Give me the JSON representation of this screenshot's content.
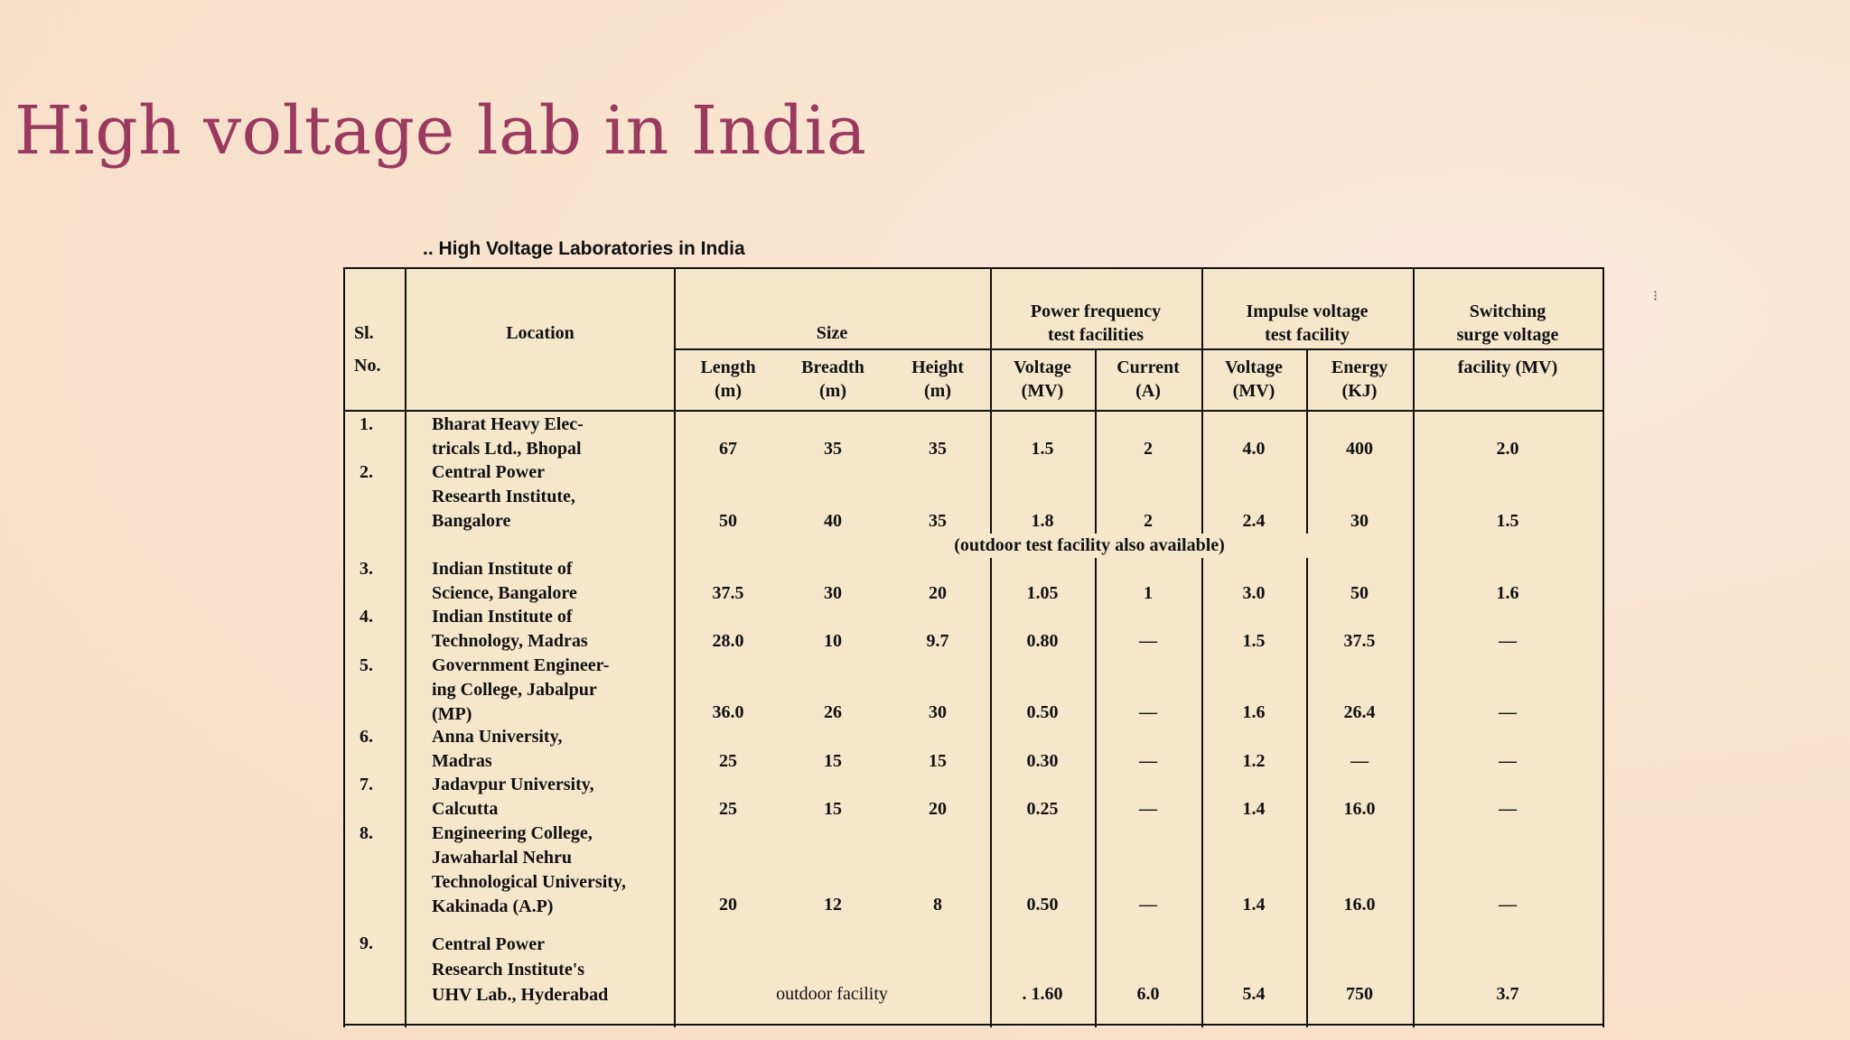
{
  "slide": {
    "title": "High voltage lab in India"
  },
  "table": {
    "caption": ".. High Voltage Laboratories in India",
    "headers": {
      "sl_no": [
        "Sl.",
        "No."
      ],
      "location": "Location",
      "size": "Size",
      "length": [
        "Length",
        "(m)"
      ],
      "breadth": [
        "Breadth",
        "(m)"
      ],
      "height": [
        "Height",
        "(m)"
      ],
      "power_frequency": [
        "Power frequency",
        "test facilities"
      ],
      "pf_voltage": [
        "Voltage",
        "(MV)"
      ],
      "pf_current": [
        "Current",
        "(A)"
      ],
      "impulse": [
        "Impulse voltage",
        "test facility"
      ],
      "imp_voltage": [
        "Voltage",
        "(MV)"
      ],
      "imp_energy": [
        "Energy",
        "(KJ)"
      ],
      "switching": [
        "Switching",
        "surge voltage",
        "facility (MV)"
      ]
    },
    "rows": [
      {
        "sl": "1.",
        "location": [
          "Bharat Heavy Elec-",
          "tricals Ltd., Bhopal"
        ],
        "length": "67",
        "breadth": "35",
        "height": "35",
        "pf_voltage": "1.5",
        "pf_current": "2",
        "imp_voltage": "4.0",
        "imp_energy": "400",
        "switching": "2.0"
      },
      {
        "sl": "2.",
        "location": [
          "Central Power",
          "Researth Institute,",
          "Bangalore"
        ],
        "length": "50",
        "breadth": "40",
        "height": "35",
        "pf_voltage": "1.8",
        "pf_current": "2",
        "imp_voltage": "2.4",
        "imp_energy": "30",
        "switching": "1.5",
        "note": "(outdoor test facility also available)"
      },
      {
        "sl": "3.",
        "location": [
          "Indian Institute of",
          "Science, Bangalore"
        ],
        "length": "37.5",
        "breadth": "30",
        "height": "20",
        "pf_voltage": "1.05",
        "pf_current": "1",
        "imp_voltage": "3.0",
        "imp_energy": "50",
        "switching": "1.6"
      },
      {
        "sl": "4.",
        "location": [
          "Indian Institute of",
          "Technology, Madras"
        ],
        "length": "28.0",
        "breadth": "10",
        "height": "9.7",
        "pf_voltage": "0.80",
        "pf_current": "—",
        "imp_voltage": "1.5",
        "imp_energy": "37.5",
        "switching": "—"
      },
      {
        "sl": "5.",
        "location": [
          "Government Engineer-",
          "ing College, Jabalpur",
          "(MP)"
        ],
        "length": "36.0",
        "breadth": "26",
        "height": "30",
        "pf_voltage": "0.50",
        "pf_current": "—",
        "imp_voltage": "1.6",
        "imp_energy": "26.4",
        "switching": "—"
      },
      {
        "sl": "6.",
        "location": [
          "Anna University,",
          "Madras"
        ],
        "length": "25",
        "breadth": "15",
        "height": "15",
        "pf_voltage": "0.30",
        "pf_current": "—",
        "imp_voltage": "1.2",
        "imp_energy": "—",
        "switching": "—"
      },
      {
        "sl": "7.",
        "location": [
          "Jadavpur University,",
          "Calcutta"
        ],
        "length": "25",
        "breadth": "15",
        "height": "20",
        "pf_voltage": "0.25",
        "pf_current": "—",
        "imp_voltage": "1.4",
        "imp_energy": "16.0",
        "switching": "—"
      },
      {
        "sl": "8.",
        "location": [
          "Engineering College,",
          "Jawaharlal Nehru",
          "Technological University,",
          "Kakinada (A.P)"
        ],
        "length": "20",
        "breadth": "12",
        "height": "8",
        "pf_voltage": "0.50",
        "pf_current": "—",
        "imp_voltage": "1.4",
        "imp_energy": "16.0",
        "switching": "—"
      },
      {
        "sl": "9.",
        "location": [
          "Central Power",
          "Research Institute's",
          "UHV Lab., Hyderabad"
        ],
        "size_note": "outdoor facility",
        "pf_voltage": ". 1.60",
        "pf_current": "6.0",
        "imp_voltage": "5.4",
        "imp_energy": "750",
        "switching": "3.7"
      }
    ]
  }
}
